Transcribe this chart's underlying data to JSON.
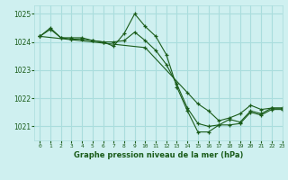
{
  "background_color": "#cff0f0",
  "grid_color": "#aadddd",
  "line_color": "#1a5c1a",
  "title": "Graphe pression niveau de la mer (hPa)",
  "xlim": [
    -0.5,
    23
  ],
  "ylim": [
    1020.5,
    1025.3
  ],
  "yticks": [
    1021,
    1022,
    1023,
    1024,
    1025
  ],
  "xticks": [
    0,
    1,
    2,
    3,
    4,
    5,
    6,
    7,
    8,
    9,
    10,
    11,
    12,
    13,
    14,
    15,
    16,
    17,
    18,
    19,
    20,
    21,
    22,
    23
  ],
  "series": [
    {
      "x": [
        0,
        1,
        2,
        3,
        4,
        5,
        6,
        7,
        8,
        9,
        10,
        11,
        12,
        13,
        14,
        15,
        16,
        17,
        18,
        19,
        20,
        21,
        22,
        23
      ],
      "y": [
        1024.2,
        1024.5,
        1024.15,
        1024.15,
        1024.15,
        1024.05,
        1024.0,
        1023.85,
        1024.3,
        1025.0,
        1024.55,
        1024.2,
        1023.55,
        1022.4,
        1021.55,
        1020.8,
        1020.8,
        1021.05,
        1021.05,
        1021.1,
        1021.5,
        1021.4,
        1021.6,
        1021.6
      ]
    },
    {
      "x": [
        0,
        1,
        2,
        3,
        4,
        5,
        6,
        7,
        8,
        9,
        10,
        11,
        12,
        13,
        14,
        15,
        16,
        17,
        18,
        19,
        20,
        21,
        22,
        23
      ],
      "y": [
        1024.2,
        1024.45,
        1024.15,
        1024.1,
        1024.1,
        1024.05,
        1024.0,
        1024.0,
        1024.05,
        1024.35,
        1024.05,
        1023.7,
        1023.2,
        1022.5,
        1021.65,
        1021.1,
        1021.0,
        1021.05,
        1021.25,
        1021.15,
        1021.55,
        1021.45,
        1021.65,
        1021.65
      ]
    },
    {
      "x": [
        0,
        10,
        14,
        15,
        16,
        17,
        18,
        19,
        20,
        21,
        22,
        23
      ],
      "y": [
        1024.2,
        1023.8,
        1022.2,
        1021.8,
        1021.55,
        1021.2,
        1021.3,
        1021.45,
        1021.75,
        1021.6,
        1021.65,
        1021.65
      ]
    }
  ]
}
